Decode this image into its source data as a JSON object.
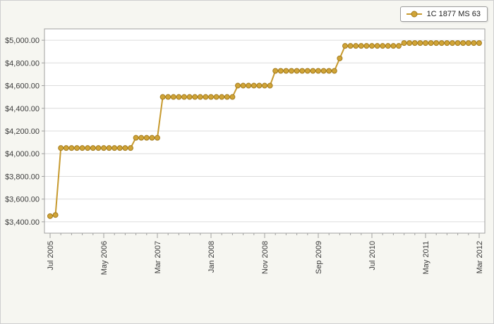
{
  "chart": {
    "legend": {
      "label": "1C 1877 MS 63"
    },
    "colors": {
      "line": "#c79a2e",
      "marker_fill": "#d0a437",
      "marker_stroke": "#a37b1e",
      "grid": "#dcdcdc",
      "axis": "#a0a0a0",
      "text": "#3c3c3c",
      "plot_bg": "#ffffff",
      "outer_bg": "#f6f6f1"
    }
  },
  "chart_data": {
    "type": "line",
    "title": "",
    "xlabel": "",
    "ylabel": "",
    "legend_position": "top-right",
    "grid": "horizontal",
    "ylim": [
      3300,
      5100
    ],
    "yticks": [
      3400,
      3600,
      3800,
      4000,
      4200,
      4400,
      4600,
      4800,
      5000
    ],
    "ytick_labels": [
      "$3,400.00",
      "$3,600.00",
      "$3,800.00",
      "$4,000.00",
      "$4,200.00",
      "$4,400.00",
      "$4,600.00",
      "$4,800.00",
      "$5,000.00"
    ],
    "x_start_label": "Jul 2005",
    "x_end_label": "Mar 2012",
    "x_interval": "monthly",
    "x_tick_positions": [
      0,
      10,
      20,
      30,
      40,
      50,
      60,
      70,
      80
    ],
    "x_tick_labels": [
      "Jul 2005",
      "May 2006",
      "Mar 2007",
      "Jan 2008",
      "Nov 2008",
      "Sep 2009",
      "Jul 2010",
      "May 2011",
      "Mar 2012"
    ],
    "series": [
      {
        "name": "1C 1877 MS 63",
        "values": [
          3450,
          3460,
          4050,
          4050,
          4050,
          4050,
          4050,
          4050,
          4050,
          4050,
          4050,
          4050,
          4050,
          4050,
          4050,
          4050,
          4140,
          4140,
          4140,
          4140,
          4140,
          4500,
          4500,
          4500,
          4500,
          4500,
          4500,
          4500,
          4500,
          4500,
          4500,
          4500,
          4500,
          4500,
          4500,
          4600,
          4600,
          4600,
          4600,
          4600,
          4600,
          4600,
          4730,
          4730,
          4730,
          4730,
          4730,
          4730,
          4730,
          4730,
          4730,
          4730,
          4730,
          4730,
          4840,
          4950,
          4950,
          4950,
          4950,
          4950,
          4950,
          4950,
          4950,
          4950,
          4950,
          4950,
          4975,
          4975,
          4975,
          4975,
          4975,
          4975,
          4975,
          4975,
          4975,
          4975,
          4975,
          4975,
          4975,
          4975,
          4975
        ]
      }
    ]
  }
}
